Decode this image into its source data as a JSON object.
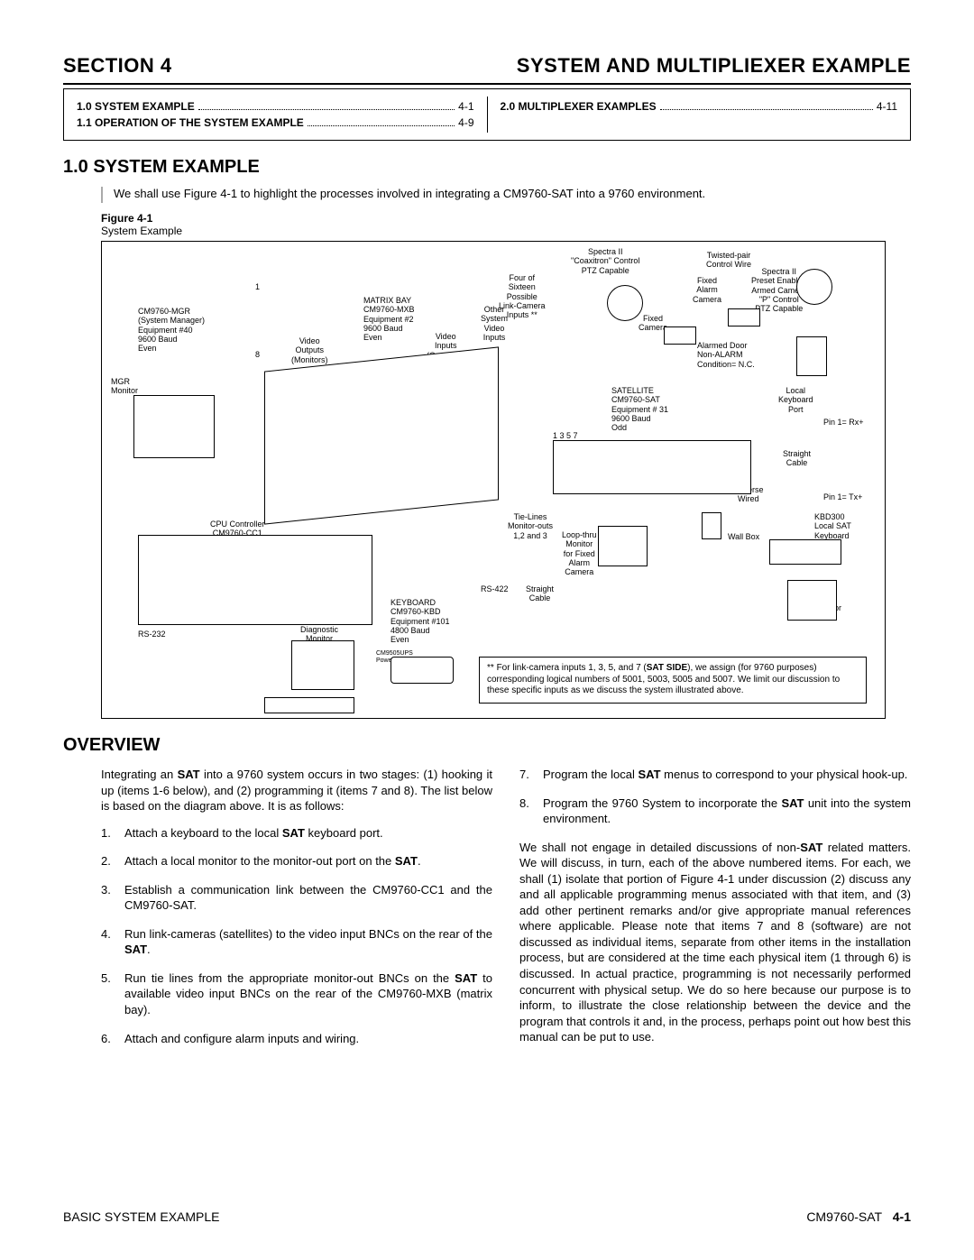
{
  "header": {
    "left": "SECTION 4",
    "right": "SYSTEM AND MULTIPLIEXER EXAMPLE"
  },
  "toc": {
    "left": [
      {
        "label": "1.0  SYSTEM EXAMPLE",
        "page": "4-1"
      },
      {
        "label": "1.1  OPERATION OF THE SYSTEM EXAMPLE",
        "page": "4-9"
      }
    ],
    "right": [
      {
        "label": "2.0  MULTIPLEXER EXAMPLES",
        "page": "4-11"
      }
    ]
  },
  "sec1": {
    "heading": "1.0 SYSTEM EXAMPLE",
    "intro": "We shall use Figure 4-1 to highlight the processes involved in integrating a CM9760-SAT into a 9760 environment."
  },
  "figure": {
    "label": "Figure 4-1",
    "caption": "System Example",
    "note_prefix": "** ",
    "note_body1": "For link-camera inputs 1, 3, 5, and 7 (",
    "note_bold": "SAT SIDE",
    "note_body2": "), we assign (for 9760 purposes) corresponding logical numbers of 5001, 5003, 5005 and 5007. We limit our discussion to these specific inputs as we discuss the system illustrated above.",
    "labels": {
      "mgr": "CM9760-MGR\n(System Manager)\nEquipment #40\n9600 Baud\nEven",
      "mgr_mon": "MGR\nMonitor",
      "matrix": "MATRIX BAY\nCM9760-MXB\nEquipment #2\n9600 Baud\nEven",
      "video_out": "Video\nOutputs\n(Monitors)",
      "video_in": "Video\nInputs\n(Cameras)",
      "other_inputs": "Other\nSystem\nVideo\nInputs",
      "four_sixteen": "Four of\nSixteen\nPossible\nLink-Camera\nInputs **",
      "spectra": "Spectra II\n\"Coaxitron\" Control\nPTZ Capable",
      "twisted": "Twisted-pair\nControl Wire",
      "fixed_alarm": "Fixed\nAlarm\nCamera",
      "spectra2": "Spectra II\nPreset Enabled\nArmed Camera\n\"P\" Control\nPTZ Capable",
      "fixed_cam": "Fixed\nCamera",
      "alarmed_door": "Alarmed Door\nNon-ALARM\nCondition= N.C.",
      "satellite": "SATELLITE\nCM9760-SAT\nEquipment # 31\n9600 Baud\nOdd",
      "local_kbd_port": "Local\nKeyboard\nPort",
      "pin_rx": "Pin 1= Rx+",
      "straight_cable": "Straight\nCable",
      "reverse_wired": "Reverse\nWired",
      "pin_tx": "Pin 1= Tx+",
      "wall_box": "Wall Box",
      "kbd300": "KBD300\nLocal SAT\nKeyboard",
      "local_sat_mon": "Local\nSAT\nMonitor",
      "tie_lines": "Tie-Lines\nMonitor-outs\n1,2 and 3",
      "loop_thru": "Loop-thru\nMonitor\nfor Fixed\nAlarm\nCamera",
      "rs422": "RS-422",
      "straight_cable2": "Straight\nCable",
      "cpu": "CPU Controller\nCM9760-CC1",
      "rs232": "RS-232",
      "diag_mon": "Diagnostic\nMonitor",
      "keyboard": "KEYBOARD\nCM9760-KBD\nEquipment #101\n4800 Baud\nEven",
      "ups": "CM9505UPS\nPower Xfmr",
      "n1357": "1   3   5   7",
      "n1": "1",
      "n8": "8"
    }
  },
  "overview": {
    "heading": "OVERVIEW",
    "intro1": "Integrating an ",
    "intro_bold": "SAT",
    "intro2": " into a 9760 system occurs in two stages: (1) hooking it up (items 1-6 below), and (2) programming it (items 7 and 8). The list below is based on the diagram above. It is as follows:",
    "items": {
      "1": {
        "pre": "Attach a keyboard to the local ",
        "b": "SAT",
        "post": " keyboard port."
      },
      "2": {
        "pre": "Attach a local monitor to the monitor-out port on the ",
        "b": "SAT",
        "post": "."
      },
      "3": {
        "pre": "Establish a communication link between the CM9760-CC1 and the CM9760-SAT.",
        "b": "",
        "post": ""
      },
      "4": {
        "pre": "Run link-cameras (satellites) to the video input BNCs on the rear of the ",
        "b": "SAT",
        "post": "."
      },
      "5a": "Run tie lines from the appropriate monitor-out BNCs on the ",
      "5b": "SAT",
      "5c": " to available video input BNCs on the rear of the CM9760-MXB (matrix bay).",
      "6": "Attach and configure alarm inputs and wiring.",
      "7": {
        "pre": "Program the local ",
        "b": "SAT",
        "post": " menus to correspond to your physical hook-up."
      },
      "8": {
        "pre": "Program the 9760 System to incorporate the ",
        "b": "SAT",
        "post": " unit into the system environment."
      }
    },
    "closing1": "We shall not engage in detailed discussions of non-",
    "closing_b": "SAT",
    "closing2": " related matters. We will discuss, in turn, each of the above numbered items. For each, we shall (1) isolate that portion of Figure 4-1 under discussion (2) discuss any and all applicable programming menus associated with that item, and (3) add other pertinent remarks and/or give appropriate manual references where applicable. Please note that items 7 and 8 (software) are not discussed as individual items, separate from other items in the installation process, but are considered at the time each physical item (1 through 6) is discussed. In actual practice, programming is not necessarily performed concurrent with physical setup. We do so here because our purpose is to inform, to illustrate the close relationship between the device and the program that controls it and, in the process, perhaps point out how best this manual can be put to use."
  },
  "footer": {
    "left": "BASIC SYSTEM EXAMPLE",
    "right_label": "CM9760-SAT",
    "right_page": "4-1"
  }
}
